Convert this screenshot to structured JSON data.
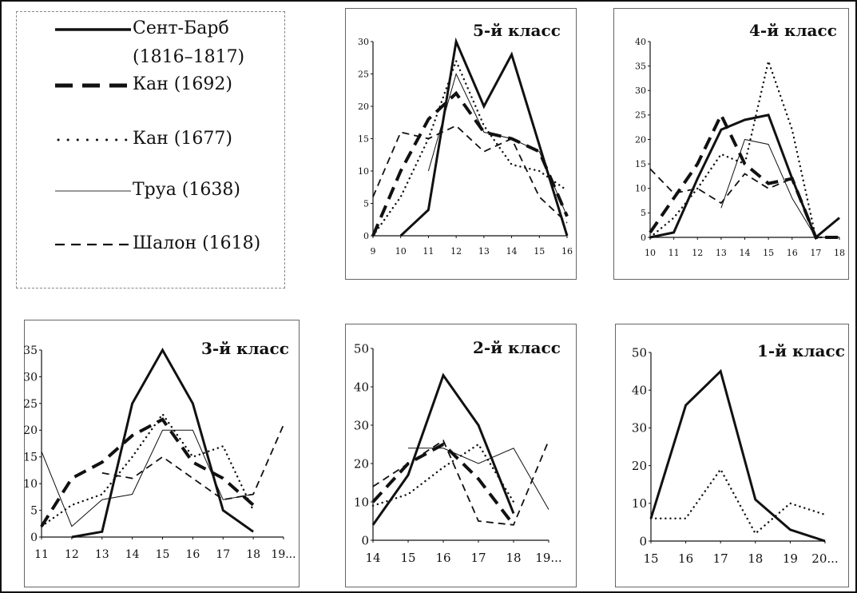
{
  "legend": {
    "entries": [
      {
        "label": "Сент-Барб",
        "label_line2": "(1816–1817)",
        "style": "solid-thick"
      },
      {
        "label": "Кан (1692)",
        "style": "dashed-heavy"
      },
      {
        "label": "Кан (1677)",
        "style": "dotted"
      },
      {
        "label": "Труа (1638)",
        "style": "thin"
      },
      {
        "label": "Шалон (1618)",
        "style": "dashed"
      }
    ]
  },
  "chart_data": [
    {
      "type": "line",
      "title": "5-й класс",
      "x": [
        "9",
        "10",
        "11",
        "12",
        "13",
        "14",
        "15",
        "16"
      ],
      "ylim": [
        0,
        30
      ],
      "yticks": [
        0,
        5,
        10,
        15,
        20,
        25,
        30
      ],
      "series": [
        {
          "name": "Сент-Барб (1816–1817)",
          "values": [
            null,
            0,
            4,
            30,
            20,
            28,
            14,
            0
          ]
        },
        {
          "name": "Кан (1692)",
          "values": [
            0,
            10,
            18,
            22,
            16,
            15,
            13,
            3
          ]
        },
        {
          "name": "Кан (1677)",
          "values": [
            0,
            6,
            15,
            27,
            17,
            11,
            10,
            7
          ]
        },
        {
          "name": "Труа (1638)",
          "values": [
            null,
            null,
            10,
            25,
            16,
            15,
            13,
            3
          ]
        },
        {
          "name": "Шалон (1618)",
          "values": [
            6,
            16,
            15,
            17,
            13,
            15,
            6,
            2
          ]
        }
      ]
    },
    {
      "type": "line",
      "title": "4-й класс",
      "x": [
        "10",
        "11",
        "12",
        "13",
        "14",
        "15",
        "16",
        "17",
        "18"
      ],
      "ylim": [
        0,
        40
      ],
      "yticks": [
        0,
        5,
        10,
        15,
        20,
        25,
        30,
        35,
        40
      ],
      "series": [
        {
          "name": "Сент-Барб (1816–1817)",
          "values": [
            0,
            1,
            12,
            22,
            24,
            25,
            12,
            0,
            4
          ]
        },
        {
          "name": "Кан (1692)",
          "values": [
            1,
            8,
            15,
            25,
            15,
            11,
            12,
            0,
            0
          ]
        },
        {
          "name": "Кан (1677)",
          "values": [
            0,
            4,
            10,
            17,
            15,
            36,
            22,
            0,
            0
          ]
        },
        {
          "name": "Труа (1638)",
          "values": [
            null,
            null,
            null,
            6,
            20,
            19,
            8,
            0,
            null
          ]
        },
        {
          "name": "Шалон (1618)",
          "values": [
            14,
            9,
            10,
            7,
            13,
            10,
            12,
            0,
            0
          ]
        }
      ]
    },
    {
      "type": "line",
      "title": "3-й класс",
      "x": [
        "11",
        "12",
        "13",
        "14",
        "15",
        "16",
        "17",
        "18",
        "19..."
      ],
      "ylim": [
        0,
        35
      ],
      "yticks": [
        0,
        5,
        10,
        15,
        20,
        25,
        30,
        35
      ],
      "series": [
        {
          "name": "Сент-Барб (1816–1817)",
          "values": [
            null,
            0,
            1,
            25,
            35,
            25,
            5,
            1,
            null
          ]
        },
        {
          "name": "Кан (1692)",
          "values": [
            2,
            11,
            14,
            19,
            22,
            14,
            11,
            6,
            null
          ]
        },
        {
          "name": "Кан (1677)",
          "values": [
            2,
            6,
            8,
            15,
            23,
            15,
            17,
            5,
            null
          ]
        },
        {
          "name": "Труа (1638)",
          "values": [
            16,
            2,
            7,
            8,
            20,
            20,
            7,
            8,
            null
          ]
        },
        {
          "name": "Шалон (1618)",
          "values": [
            null,
            null,
            12,
            11,
            15,
            11,
            7,
            8,
            21
          ]
        }
      ]
    },
    {
      "type": "line",
      "title": "2-й класс",
      "x": [
        "14",
        "15",
        "16",
        "17",
        "18",
        "19..."
      ],
      "ylim": [
        0,
        50
      ],
      "yticks": [
        0,
        10,
        20,
        30,
        40,
        50
      ],
      "series": [
        {
          "name": "Сент-Барб (1816–1817)",
          "values": [
            4,
            17,
            43,
            30,
            7,
            null
          ]
        },
        {
          "name": "Кан (1692)",
          "values": [
            10,
            20,
            25,
            16,
            4,
            null
          ]
        },
        {
          "name": "Кан (1677)",
          "values": [
            9,
            12,
            19,
            25,
            10,
            null
          ]
        },
        {
          "name": "Труа (1638)",
          "values": [
            null,
            24,
            24,
            20,
            24,
            8
          ]
        },
        {
          "name": "Шалон (1618)",
          "values": [
            14,
            20,
            26,
            5,
            4,
            26
          ]
        }
      ]
    },
    {
      "type": "line",
      "title": "1-й класс",
      "x": [
        "15",
        "16",
        "17",
        "18",
        "19",
        "20..."
      ],
      "ylim": [
        0,
        50
      ],
      "yticks": [
        0,
        10,
        20,
        30,
        40,
        50
      ],
      "series": [
        {
          "name": "Сент-Барб (1816–1817)",
          "values": [
            6,
            36,
            45,
            11,
            3,
            0
          ]
        },
        {
          "name": "Кан (1677)",
          "values": [
            6,
            6,
            19,
            2,
            10,
            7
          ]
        }
      ]
    }
  ],
  "colors": {
    "ink": "#111111",
    "frame": "#666666",
    "legend_border": "#888888"
  }
}
